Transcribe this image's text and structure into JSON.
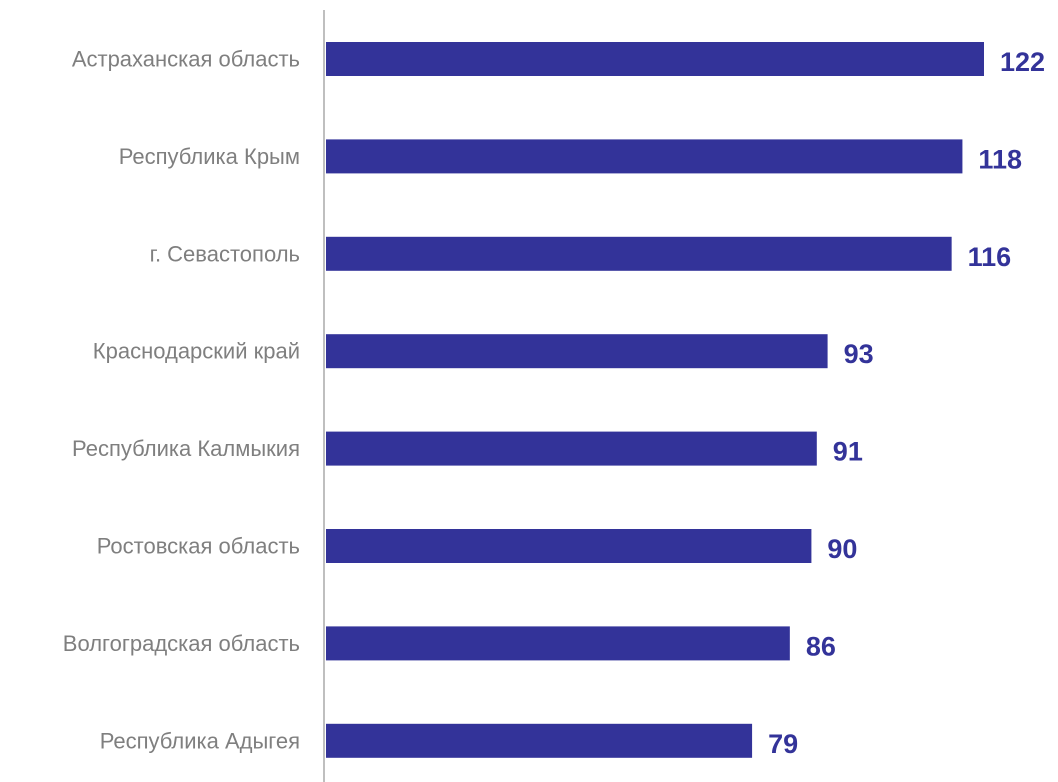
{
  "chart_data": {
    "type": "bar",
    "orientation": "horizontal",
    "title": "",
    "xlabel": "",
    "ylabel": "",
    "categories": [
      "Астраханская область",
      "Республика Крым",
      "г. Севастополь",
      "Краснодарский край",
      "Республика Калмыкия",
      "Ростовская область",
      "Волгоградская область",
      "Республика Адыгея"
    ],
    "values": [
      122,
      118,
      116,
      93,
      91,
      90,
      86,
      79
    ],
    "value_labels": [
      "122",
      "118",
      "116",
      "93",
      "91",
      "90",
      "86",
      "79"
    ],
    "xlim": [
      0,
      122
    ],
    "grid": false,
    "legend": "none",
    "colors": {
      "bar": "#333399",
      "value_label": "#333399",
      "category_label": "#7f7f7f",
      "axis": "#bfbfbf"
    }
  }
}
